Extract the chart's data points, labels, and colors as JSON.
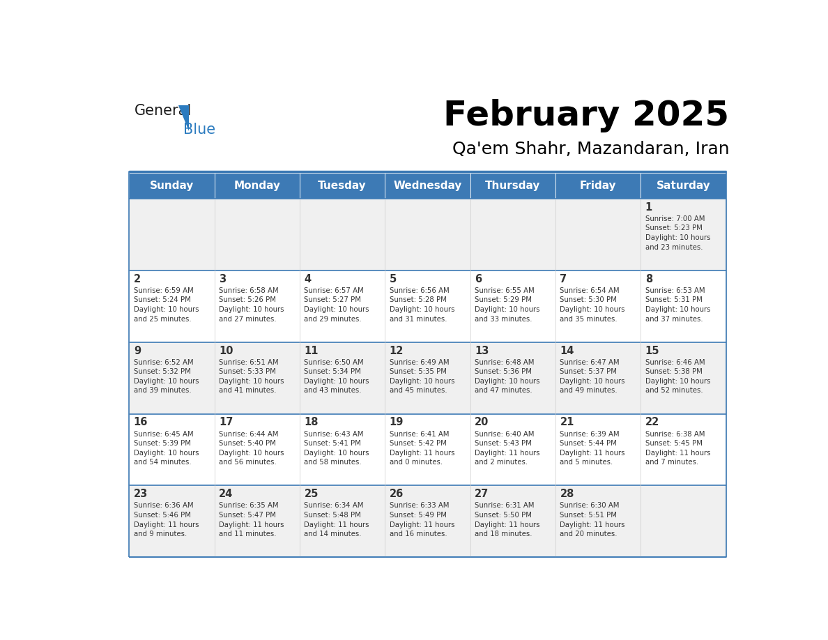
{
  "title": "February 2025",
  "subtitle": "Qa'em Shahr, Mazandaran, Iran",
  "header_bg": "#3d7ab5",
  "header_text_color": "#ffffff",
  "header_font_size": 11,
  "day_headers": [
    "Sunday",
    "Monday",
    "Tuesday",
    "Wednesday",
    "Thursday",
    "Friday",
    "Saturday"
  ],
  "title_font_size": 36,
  "subtitle_font_size": 18,
  "cell_bg_odd": "#f0f0f0",
  "cell_bg_even": "#ffffff",
  "divider_color": "#3d7ab5",
  "text_color": "#333333",
  "logo_color_general": "#1a1a1a",
  "logo_color_blue": "#2b7bbf",
  "weeks": [
    [
      {
        "day": null,
        "info": ""
      },
      {
        "day": null,
        "info": ""
      },
      {
        "day": null,
        "info": ""
      },
      {
        "day": null,
        "info": ""
      },
      {
        "day": null,
        "info": ""
      },
      {
        "day": null,
        "info": ""
      },
      {
        "day": 1,
        "info": "Sunrise: 7:00 AM\nSunset: 5:23 PM\nDaylight: 10 hours\nand 23 minutes."
      }
    ],
    [
      {
        "day": 2,
        "info": "Sunrise: 6:59 AM\nSunset: 5:24 PM\nDaylight: 10 hours\nand 25 minutes."
      },
      {
        "day": 3,
        "info": "Sunrise: 6:58 AM\nSunset: 5:26 PM\nDaylight: 10 hours\nand 27 minutes."
      },
      {
        "day": 4,
        "info": "Sunrise: 6:57 AM\nSunset: 5:27 PM\nDaylight: 10 hours\nand 29 minutes."
      },
      {
        "day": 5,
        "info": "Sunrise: 6:56 AM\nSunset: 5:28 PM\nDaylight: 10 hours\nand 31 minutes."
      },
      {
        "day": 6,
        "info": "Sunrise: 6:55 AM\nSunset: 5:29 PM\nDaylight: 10 hours\nand 33 minutes."
      },
      {
        "day": 7,
        "info": "Sunrise: 6:54 AM\nSunset: 5:30 PM\nDaylight: 10 hours\nand 35 minutes."
      },
      {
        "day": 8,
        "info": "Sunrise: 6:53 AM\nSunset: 5:31 PM\nDaylight: 10 hours\nand 37 minutes."
      }
    ],
    [
      {
        "day": 9,
        "info": "Sunrise: 6:52 AM\nSunset: 5:32 PM\nDaylight: 10 hours\nand 39 minutes."
      },
      {
        "day": 10,
        "info": "Sunrise: 6:51 AM\nSunset: 5:33 PM\nDaylight: 10 hours\nand 41 minutes."
      },
      {
        "day": 11,
        "info": "Sunrise: 6:50 AM\nSunset: 5:34 PM\nDaylight: 10 hours\nand 43 minutes."
      },
      {
        "day": 12,
        "info": "Sunrise: 6:49 AM\nSunset: 5:35 PM\nDaylight: 10 hours\nand 45 minutes."
      },
      {
        "day": 13,
        "info": "Sunrise: 6:48 AM\nSunset: 5:36 PM\nDaylight: 10 hours\nand 47 minutes."
      },
      {
        "day": 14,
        "info": "Sunrise: 6:47 AM\nSunset: 5:37 PM\nDaylight: 10 hours\nand 49 minutes."
      },
      {
        "day": 15,
        "info": "Sunrise: 6:46 AM\nSunset: 5:38 PM\nDaylight: 10 hours\nand 52 minutes."
      }
    ],
    [
      {
        "day": 16,
        "info": "Sunrise: 6:45 AM\nSunset: 5:39 PM\nDaylight: 10 hours\nand 54 minutes."
      },
      {
        "day": 17,
        "info": "Sunrise: 6:44 AM\nSunset: 5:40 PM\nDaylight: 10 hours\nand 56 minutes."
      },
      {
        "day": 18,
        "info": "Sunrise: 6:43 AM\nSunset: 5:41 PM\nDaylight: 10 hours\nand 58 minutes."
      },
      {
        "day": 19,
        "info": "Sunrise: 6:41 AM\nSunset: 5:42 PM\nDaylight: 11 hours\nand 0 minutes."
      },
      {
        "day": 20,
        "info": "Sunrise: 6:40 AM\nSunset: 5:43 PM\nDaylight: 11 hours\nand 2 minutes."
      },
      {
        "day": 21,
        "info": "Sunrise: 6:39 AM\nSunset: 5:44 PM\nDaylight: 11 hours\nand 5 minutes."
      },
      {
        "day": 22,
        "info": "Sunrise: 6:38 AM\nSunset: 5:45 PM\nDaylight: 11 hours\nand 7 minutes."
      }
    ],
    [
      {
        "day": 23,
        "info": "Sunrise: 6:36 AM\nSunset: 5:46 PM\nDaylight: 11 hours\nand 9 minutes."
      },
      {
        "day": 24,
        "info": "Sunrise: 6:35 AM\nSunset: 5:47 PM\nDaylight: 11 hours\nand 11 minutes."
      },
      {
        "day": 25,
        "info": "Sunrise: 6:34 AM\nSunset: 5:48 PM\nDaylight: 11 hours\nand 14 minutes."
      },
      {
        "day": 26,
        "info": "Sunrise: 6:33 AM\nSunset: 5:49 PM\nDaylight: 11 hours\nand 16 minutes."
      },
      {
        "day": 27,
        "info": "Sunrise: 6:31 AM\nSunset: 5:50 PM\nDaylight: 11 hours\nand 18 minutes."
      },
      {
        "day": 28,
        "info": "Sunrise: 6:30 AM\nSunset: 5:51 PM\nDaylight: 11 hours\nand 20 minutes."
      },
      {
        "day": null,
        "info": ""
      }
    ]
  ]
}
